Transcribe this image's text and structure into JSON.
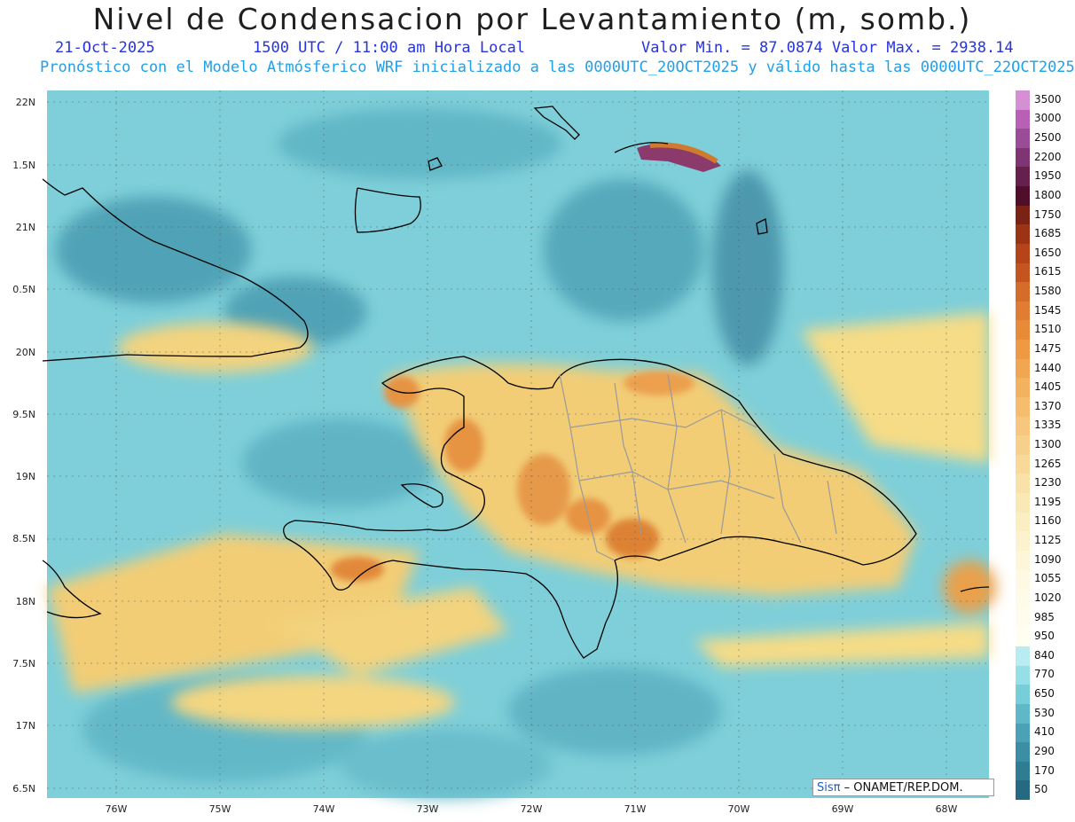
{
  "title": "Nivel de Condensacion por Levantamiento (m, somb.)",
  "date": "21-Oct-2025",
  "time": "1500 UTC / 11:00 am Hora Local",
  "minmax": "Valor Min. = 87.0874  Valor Max. = 2938.14",
  "forecast": "Pronóstico con el Modelo Atmósferico WRF inicializado a las 0000UTC_20OCT2025 y válido hasta las  0000UTC_22OCT2025",
  "credit_brand": "Sisπ",
  "credit_rest": "– ONAMET/REP.DOM.",
  "lat_labels": [
    "22N",
    "1.5N",
    "21N",
    "0.5N",
    "20N",
    "9.5N",
    "19N",
    "8.5N",
    "18N",
    "7.5N",
    "17N",
    "6.5N"
  ],
  "lon_labels": [
    "76W",
    "75W",
    "74W",
    "73W",
    "72W",
    "71W",
    "70W",
    "69W",
    "68W"
  ],
  "colorbar": {
    "labels": [
      "3500",
      "3000",
      "2500",
      "2200",
      "1950",
      "1800",
      "1750",
      "1685",
      "1650",
      "1615",
      "1580",
      "1545",
      "1510",
      "1475",
      "1440",
      "1405",
      "1370",
      "1335",
      "1300",
      "1265",
      "1230",
      "1195",
      "1160",
      "1125",
      "1090",
      "1055",
      "1020",
      "985",
      "950",
      "840",
      "770",
      "650",
      "530",
      "410",
      "290",
      "170",
      "50"
    ],
    "colors": [
      "#d58fd4",
      "#b860b5",
      "#9a4d96",
      "#7f3573",
      "#66204d",
      "#4f0f2a",
      "#7a2314",
      "#9b3412",
      "#b5441a",
      "#c65420",
      "#d66c2a",
      "#e07d32",
      "#e88b38",
      "#ee9a44",
      "#f1a751",
      "#f3b25f",
      "#f5bd6d",
      "#f6c77c",
      "#f7d08b",
      "#f8d99a",
      "#f9e1a8",
      "#fae8b5",
      "#fbeec2",
      "#fcf2cd",
      "#fdf6d8",
      "#fef9e2",
      "#fefbe9",
      "#fffcee",
      "#fffef3",
      "#b9ecf1",
      "#96dfe7",
      "#77cdd8",
      "#5fb8c8",
      "#4ba2b6",
      "#3b8ea4",
      "#2f7c93",
      "#256a82"
    ]
  },
  "palette": {
    "sea": "#79cbd6",
    "sea_dark": "#4c9fb2",
    "warm": "#f6d77a",
    "hot": "#e3893a",
    "coast": "#000000",
    "border": "#a0a0a0"
  }
}
